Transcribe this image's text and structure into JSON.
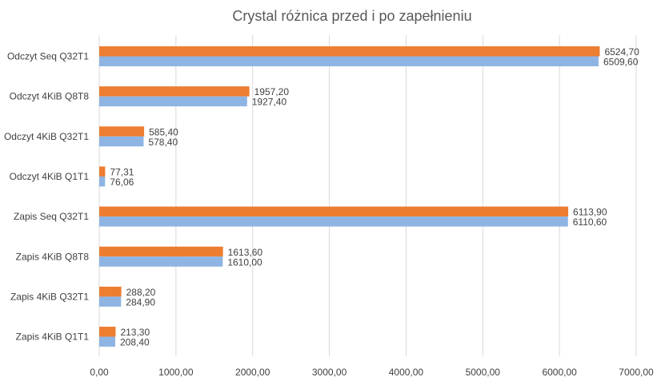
{
  "chart_data": {
    "type": "bar",
    "orientation": "horizontal",
    "title": "Crystal różnica przed i po zapełnieniu",
    "xlabel": "",
    "ylabel": "",
    "xlim": [
      0,
      7000
    ],
    "x_ticks": [
      "0,00",
      "1000,00",
      "2000,00",
      "3000,00",
      "4000,00",
      "5000,00",
      "6000,00",
      "7000,00"
    ],
    "x_tick_values": [
      0,
      1000,
      2000,
      3000,
      4000,
      5000,
      6000,
      7000
    ],
    "grid": true,
    "legend": "none",
    "categories": [
      "Odczyt Seq Q32T1",
      "Odczyt 4KiB Q8T8",
      "Odczyt 4KiB Q32T1",
      "Odczyt 4KiB Q1T1",
      "Zapis Seq Q32T1",
      "Zapis 4KiB Q8T8",
      "Zapis 4KiB Q32T1",
      "Zapis 4KiB Q1T1"
    ],
    "series": [
      {
        "color": "#ED7D31",
        "values": [
          6524.7,
          1957.2,
          585.4,
          77.31,
          6113.9,
          1613.6,
          288.2,
          213.3
        ],
        "labels": [
          "6524,70",
          "1957,20",
          "585,40",
          "77,31",
          "6113,90",
          "1613,60",
          "288,20",
          "213,30"
        ]
      },
      {
        "color": "#8EB4E3",
        "values": [
          6509.6,
          1927.4,
          578.4,
          76.06,
          6110.6,
          1610.0,
          284.9,
          208.4
        ],
        "labels": [
          "6509,60",
          "1927,40",
          "578,40",
          "76,06",
          "6110,60",
          "1610,00",
          "284,90",
          "208,40"
        ]
      }
    ]
  }
}
